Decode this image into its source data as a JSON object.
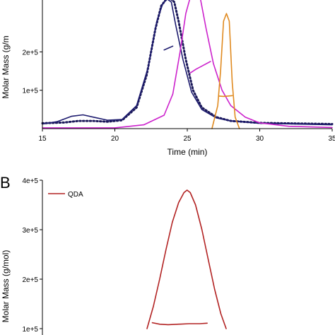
{
  "chart_data": [
    {
      "type": "line",
      "panel_label": "",
      "xlabel": "Time (min)",
      "ylabel": "Molar Mass (g/m",
      "xlim": [
        15,
        35
      ],
      "ylim": [
        0,
        350000.0
      ],
      "x_ticks": [
        "15",
        "20",
        "25",
        "30",
        "35"
      ],
      "y_ticks": [
        "1e+5",
        "2e+5"
      ],
      "y_tick_values": [
        100000,
        200000
      ],
      "series": [
        {
          "style": "dotted",
          "color": "#1c1a5a",
          "points": [
            [
              15,
              0.14
            ],
            [
              16.5,
              0.16
            ],
            [
              17.5,
              0.2
            ],
            [
              18.5,
              0.2
            ],
            [
              19.5,
              0.18
            ],
            [
              20.5,
              0.22
            ],
            [
              21.5,
              0.55
            ],
            [
              22.2,
              1.4
            ],
            [
              22.8,
              2.6
            ],
            [
              23.2,
              3.2
            ],
            [
              23.5,
              3.35
            ],
            [
              23.8,
              3.4
            ],
            [
              24.1,
              3.3
            ],
            [
              24.4,
              2.8
            ],
            [
              24.9,
              1.8
            ],
            [
              25.4,
              1.0
            ],
            [
              26.0,
              0.55
            ],
            [
              27,
              0.3
            ],
            [
              28,
              0.2
            ],
            [
              30,
              0.15
            ],
            [
              35,
              0.12
            ]
          ]
        },
        {
          "style": "solid",
          "color": "#1c1a6e",
          "points": [
            [
              15,
              0.12
            ],
            [
              16,
              0.18
            ],
            [
              17,
              0.32
            ],
            [
              17.8,
              0.36
            ],
            [
              18.5,
              0.3
            ],
            [
              19.5,
              0.22
            ],
            [
              20.5,
              0.24
            ],
            [
              21.5,
              0.6
            ],
            [
              22.3,
              1.6
            ],
            [
              22.9,
              2.8
            ],
            [
              23.3,
              3.25
            ],
            [
              23.6,
              3.38
            ],
            [
              23.9,
              3.3
            ],
            [
              24.2,
              2.7
            ],
            [
              24.7,
              1.8
            ],
            [
              25.3,
              0.95
            ],
            [
              26,
              0.5
            ],
            [
              27,
              0.28
            ],
            [
              28,
              0.2
            ],
            [
              30,
              0.14
            ],
            [
              35,
              0.1
            ]
          ]
        },
        {
          "style": "solid",
          "color": "#cc22cc",
          "points": [
            [
              15,
              0.02
            ],
            [
              20,
              0.02
            ],
            [
              22,
              0.1
            ],
            [
              23.4,
              0.35
            ],
            [
              24,
              0.9
            ],
            [
              24.5,
              2.0
            ],
            [
              24.9,
              3.0
            ],
            [
              25.3,
              3.55
            ],
            [
              25.6,
              3.6
            ],
            [
              25.9,
              3.4
            ],
            [
              26.3,
              2.6
            ],
            [
              26.8,
              1.7
            ],
            [
              27.4,
              1.0
            ],
            [
              28,
              0.6
            ],
            [
              29,
              0.3
            ],
            [
              30,
              0.15
            ],
            [
              32,
              0.06
            ],
            [
              35,
              0.03
            ]
          ]
        },
        {
          "style": "solid",
          "color": "#e08a20",
          "points": [
            [
              26.7,
              0
            ],
            [
              27.1,
              0.6
            ],
            [
              27.3,
              1.5
            ],
            [
              27.5,
              2.8
            ],
            [
              27.7,
              3.0
            ],
            [
              27.9,
              2.8
            ],
            [
              28.1,
              1.2
            ],
            [
              28.3,
              0.3
            ],
            [
              28.6,
              0
            ]
          ]
        },
        {
          "style": "solid",
          "color": "#1c1a6e",
          "points": [
            [
              23.4,
              2.05
            ],
            [
              23.7,
              2.1
            ],
            [
              24.0,
              2.15
            ]
          ]
        },
        {
          "style": "solid",
          "color": "#cc22cc",
          "points": [
            [
              25.2,
              1.45
            ],
            [
              25.6,
              1.55
            ],
            [
              26.1,
              1.65
            ],
            [
              26.6,
              1.75
            ]
          ]
        },
        {
          "style": "solid",
          "color": "#e08a20",
          "points": [
            [
              27.2,
              0.85
            ],
            [
              27.5,
              0.84
            ],
            [
              27.8,
              0.85
            ],
            [
              28.1,
              0.86
            ]
          ]
        }
      ]
    },
    {
      "type": "line",
      "panel_label": "B",
      "xlabel": "",
      "ylabel": "Molar Mass (g/mol)",
      "ylim": [
        100000.0,
        400000.0
      ],
      "y_ticks": [
        "1e+5",
        "2e+5",
        "3e+5",
        "4e+5"
      ],
      "y_tick_values": [
        100000,
        200000,
        300000,
        400000
      ],
      "legend": {
        "position": "top-left",
        "entries": [
          {
            "name": "QDA",
            "color": "#b22222"
          }
        ]
      },
      "series": [
        {
          "name": "QDA",
          "style": "solid",
          "color": "#b22222",
          "points": [
            [
              0,
              1.0
            ],
            [
              0.06,
              1.45
            ],
            [
              0.12,
              2.0
            ],
            [
              0.18,
              2.6
            ],
            [
              0.24,
              3.15
            ],
            [
              0.3,
              3.55
            ],
            [
              0.35,
              3.75
            ],
            [
              0.38,
              3.8
            ],
            [
              0.41,
              3.75
            ],
            [
              0.46,
              3.5
            ],
            [
              0.52,
              3.0
            ],
            [
              0.58,
              2.4
            ],
            [
              0.64,
              1.8
            ],
            [
              0.7,
              1.3
            ],
            [
              0.75,
              1.0
            ]
          ]
        },
        {
          "style": "solid",
          "color": "#b22222",
          "points": [
            [
              0.05,
              1.12
            ],
            [
              0.12,
              1.09
            ],
            [
              0.2,
              1.08
            ],
            [
              0.3,
              1.09
            ],
            [
              0.4,
              1.1
            ],
            [
              0.5,
              1.1
            ],
            [
              0.57,
              1.11
            ]
          ]
        }
      ]
    }
  ]
}
